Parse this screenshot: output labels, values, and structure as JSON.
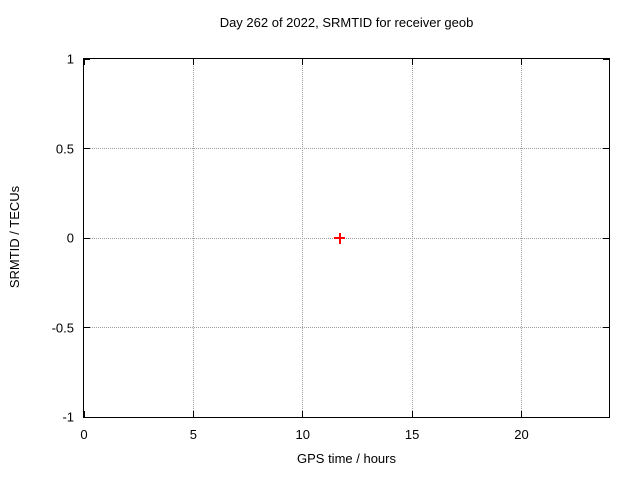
{
  "figure": {
    "background": "#ffffff",
    "border_color": "#000000",
    "grid_color": "#9e9e9e",
    "text_color": "#000000"
  },
  "chart_data": {
    "type": "scatter",
    "title": "Day 262 of 2022, SRMTID for receiver geob",
    "xlabel": "GPS time / hours",
    "ylabel": "SRMTID / TECUs",
    "xlim": [
      0,
      24
    ],
    "ylim": [
      -1,
      1
    ],
    "xticks": [
      0,
      5,
      10,
      15,
      20
    ],
    "yticks": [
      -1,
      -0.5,
      0,
      0.5,
      1
    ],
    "grid": true,
    "legend": "none",
    "series": [
      {
        "name": "SRMTID",
        "marker": "plus",
        "color": "#ff0000",
        "points": [
          {
            "x": 11.7,
            "y": 0.0
          }
        ]
      }
    ]
  }
}
